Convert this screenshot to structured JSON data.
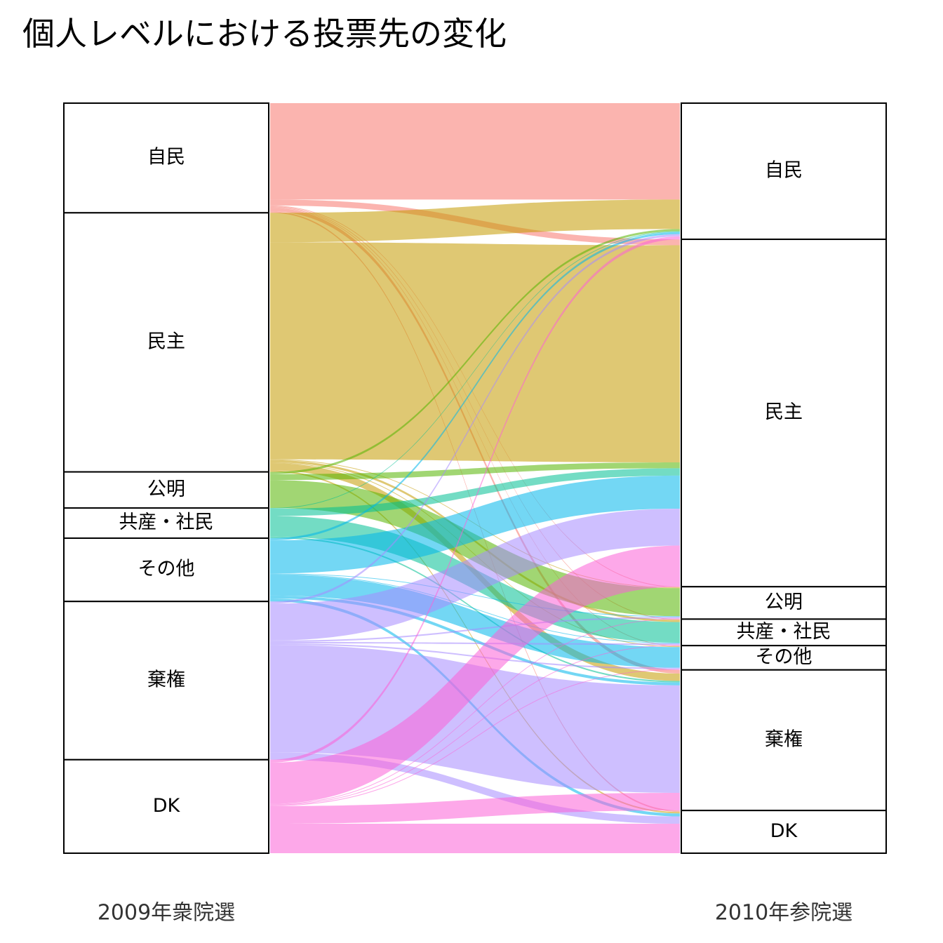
{
  "title": "個人レベルにおける投票先の変化",
  "chart_data": {
    "type": "alluvial",
    "title": "個人レベルにおける投票先の変化",
    "axis_labels": [
      "2009年衆院選",
      "2010年参院選"
    ],
    "categories": [
      "自民",
      "民主",
      "公明",
      "共産・社民",
      "その他",
      "棄権",
      "DK"
    ],
    "colors": {
      "自民": "#F8766D",
      "民主": "#C49A00",
      "公明": "#53B400",
      "共産・社民": "#00C094",
      "その他": "#00B6EB",
      "棄権": "#A58AFF",
      "DK": "#FB61D7"
    },
    "flows": [
      {
        "from": "自民",
        "to": "自民",
        "value": 131
      },
      {
        "from": "自民",
        "to": "民主",
        "value": 8
      },
      {
        "from": "自民",
        "to": "公明",
        "value": 1
      },
      {
        "from": "自民",
        "to": "共産・社民",
        "value": 1
      },
      {
        "from": "自民",
        "to": "その他",
        "value": 1
      },
      {
        "from": "自民",
        "to": "棄権",
        "value": 5
      },
      {
        "from": "自民",
        "to": "DK",
        "value": 2
      },
      {
        "from": "民主",
        "to": "自民",
        "value": 40
      },
      {
        "from": "民主",
        "to": "民主",
        "value": 295
      },
      {
        "from": "民主",
        "to": "公明",
        "value": 1
      },
      {
        "from": "民主",
        "to": "共産・社民",
        "value": 3
      },
      {
        "from": "民主",
        "to": "その他",
        "value": 1
      },
      {
        "from": "民主",
        "to": "棄権",
        "value": 10
      },
      {
        "from": "民主",
        "to": "DK",
        "value": 2
      },
      {
        "from": "公明",
        "to": "自民",
        "value": 3
      },
      {
        "from": "公明",
        "to": "民主",
        "value": 8
      },
      {
        "from": "公明",
        "to": "公明",
        "value": 38
      },
      {
        "from": "共産・社民",
        "to": "自民",
        "value": 1
      },
      {
        "from": "共産・社民",
        "to": "民主",
        "value": 10
      },
      {
        "from": "共産・社民",
        "to": "共産・社民",
        "value": 28
      },
      {
        "from": "共産・社民",
        "to": "棄権",
        "value": 2
      },
      {
        "from": "その他",
        "to": "自民",
        "value": 3
      },
      {
        "from": "その他",
        "to": "民主",
        "value": 45
      },
      {
        "from": "その他",
        "to": "公明",
        "value": 1
      },
      {
        "from": "その他",
        "to": "共産・社民",
        "value": 1
      },
      {
        "from": "その他",
        "to": "その他",
        "value": 28
      },
      {
        "from": "その他",
        "to": "棄権",
        "value": 4
      },
      {
        "from": "その他",
        "to": "DK",
        "value": 4
      },
      {
        "from": "棄権",
        "to": "自民",
        "value": 3
      },
      {
        "from": "棄権",
        "to": "民主",
        "value": 50
      },
      {
        "from": "棄権",
        "to": "公明",
        "value": 2
      },
      {
        "from": "棄権",
        "to": "共産・社民",
        "value": 2
      },
      {
        "from": "棄権",
        "to": "その他",
        "value": 2
      },
      {
        "from": "棄権",
        "to": "棄権",
        "value": 146
      },
      {
        "from": "棄権",
        "to": "DK",
        "value": 10
      },
      {
        "from": "DK",
        "to": "自民",
        "value": 4
      },
      {
        "from": "DK",
        "to": "民主",
        "value": 56
      },
      {
        "from": "DK",
        "to": "公明",
        "value": 1
      },
      {
        "from": "DK",
        "to": "共産・社民",
        "value": 1
      },
      {
        "from": "DK",
        "to": "その他",
        "value": 1
      },
      {
        "from": "DK",
        "to": "棄権",
        "value": 24
      },
      {
        "from": "DK",
        "to": "DK",
        "value": 40
      }
    ]
  }
}
